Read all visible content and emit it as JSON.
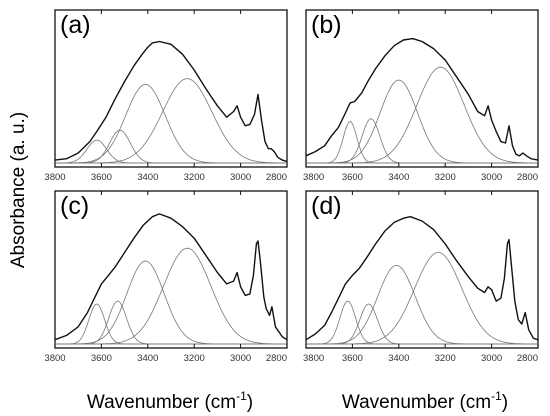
{
  "figure": {
    "ylabel": "Absorbance (a. u.)",
    "xlabel_main": "Wavenumber (cm",
    "xlabel_sup": "-1",
    "xlabel_tail": ")"
  },
  "chart_data": [
    {
      "type": "line",
      "panel": "(a)",
      "title": "(a)",
      "xlabel": "",
      "ylabel": "",
      "xlim": [
        3800,
        2800
      ],
      "x_reversed": true,
      "ylim": [
        0,
        1
      ],
      "x_ticks": [
        3800,
        3600,
        3400,
        3200,
        3000,
        2800
      ],
      "grid": false,
      "components": [
        {
          "center": 3620,
          "height": 0.16,
          "fwhm": 100
        },
        {
          "center": 3520,
          "height": 0.23,
          "fwhm": 105
        },
        {
          "center": 3410,
          "height": 0.55,
          "fwhm": 200
        },
        {
          "center": 3230,
          "height": 0.59,
          "fwhm": 250
        }
      ],
      "series": [
        {
          "role": "measured",
          "x": [
            3800,
            3750,
            3700,
            3650,
            3620,
            3580,
            3540,
            3500,
            3460,
            3420,
            3400,
            3380,
            3350,
            3300,
            3250,
            3200,
            3150,
            3100,
            3060,
            3030,
            3015,
            3000,
            2980,
            2960,
            2940,
            2925,
            2910,
            2895,
            2880,
            2868,
            2855,
            2840,
            2820,
            2800
          ],
          "y": [
            0.02,
            0.03,
            0.07,
            0.15,
            0.22,
            0.32,
            0.45,
            0.57,
            0.68,
            0.77,
            0.81,
            0.84,
            0.85,
            0.83,
            0.76,
            0.65,
            0.52,
            0.4,
            0.32,
            0.36,
            0.4,
            0.32,
            0.26,
            0.27,
            0.34,
            0.48,
            0.3,
            0.15,
            0.1,
            0.1,
            0.08,
            0.04,
            0.02,
            0.01
          ]
        }
      ]
    },
    {
      "type": "line",
      "panel": "(b)",
      "title": "(b)",
      "xlabel": "",
      "ylabel": "",
      "xlim": [
        3800,
        2800
      ],
      "x_reversed": true,
      "ylim": [
        0,
        1
      ],
      "x_ticks": [
        3800,
        3600,
        3400,
        3200,
        3000,
        2800
      ],
      "grid": false,
      "components": [
        {
          "center": 3610,
          "height": 0.29,
          "fwhm": 70
        },
        {
          "center": 3520,
          "height": 0.31,
          "fwhm": 90
        },
        {
          "center": 3400,
          "height": 0.58,
          "fwhm": 190
        },
        {
          "center": 3220,
          "height": 0.67,
          "fwhm": 240
        }
      ],
      "series": [
        {
          "role": "measured",
          "x": [
            3800,
            3760,
            3720,
            3690,
            3660,
            3630,
            3610,
            3590,
            3560,
            3530,
            3500,
            3460,
            3420,
            3380,
            3340,
            3300,
            3250,
            3200,
            3150,
            3100,
            3060,
            3030,
            3015,
            3000,
            2980,
            2960,
            2940,
            2925,
            2910,
            2895,
            2880,
            2865,
            2850,
            2830,
            2800
          ],
          "y": [
            0.05,
            0.08,
            0.12,
            0.19,
            0.25,
            0.35,
            0.42,
            0.43,
            0.49,
            0.58,
            0.66,
            0.75,
            0.82,
            0.86,
            0.87,
            0.85,
            0.8,
            0.72,
            0.6,
            0.48,
            0.36,
            0.33,
            0.4,
            0.3,
            0.22,
            0.15,
            0.14,
            0.26,
            0.12,
            0.06,
            0.05,
            0.07,
            0.05,
            0.03,
            0.02
          ]
        }
      ]
    },
    {
      "type": "line",
      "panel": "(c)",
      "title": "(c)",
      "xlabel": "",
      "ylabel": "",
      "xlim": [
        3800,
        2800
      ],
      "x_reversed": true,
      "ylim": [
        0,
        1
      ],
      "x_ticks": [
        3800,
        3600,
        3400,
        3200,
        3000,
        2800
      ],
      "grid": false,
      "components": [
        {
          "center": 3620,
          "height": 0.28,
          "fwhm": 80
        },
        {
          "center": 3530,
          "height": 0.3,
          "fwhm": 90
        },
        {
          "center": 3410,
          "height": 0.58,
          "fwhm": 190
        },
        {
          "center": 3230,
          "height": 0.67,
          "fwhm": 240
        }
      ],
      "series": [
        {
          "role": "measured",
          "x": [
            3800,
            3750,
            3700,
            3660,
            3630,
            3600,
            3570,
            3540,
            3500,
            3460,
            3420,
            3380,
            3350,
            3300,
            3250,
            3200,
            3150,
            3100,
            3060,
            3030,
            3015,
            3000,
            2980,
            2960,
            2945,
            2932,
            2925,
            2915,
            2900,
            2890,
            2875,
            2865,
            2850,
            2820,
            2800
          ],
          "y": [
            0.03,
            0.06,
            0.12,
            0.22,
            0.32,
            0.42,
            0.48,
            0.54,
            0.64,
            0.74,
            0.83,
            0.89,
            0.91,
            0.88,
            0.82,
            0.74,
            0.62,
            0.5,
            0.42,
            0.44,
            0.5,
            0.4,
            0.34,
            0.35,
            0.48,
            0.7,
            0.72,
            0.58,
            0.33,
            0.25,
            0.2,
            0.26,
            0.12,
            0.05,
            0.03
          ]
        }
      ]
    },
    {
      "type": "line",
      "panel": "(d)",
      "title": "(d)",
      "xlabel": "",
      "ylabel": "",
      "xlim": [
        3800,
        2800
      ],
      "x_reversed": true,
      "ylim": [
        0,
        1
      ],
      "x_ticks": [
        3800,
        3600,
        3400,
        3200,
        3000,
        2800
      ],
      "grid": false,
      "components": [
        {
          "center": 3620,
          "height": 0.3,
          "fwhm": 80
        },
        {
          "center": 3530,
          "height": 0.28,
          "fwhm": 90
        },
        {
          "center": 3410,
          "height": 0.55,
          "fwhm": 190
        },
        {
          "center": 3230,
          "height": 0.64,
          "fwhm": 240
        }
      ],
      "series": [
        {
          "role": "measured",
          "x": [
            3800,
            3760,
            3720,
            3690,
            3660,
            3630,
            3600,
            3570,
            3540,
            3500,
            3460,
            3420,
            3380,
            3350,
            3300,
            3250,
            3200,
            3150,
            3100,
            3060,
            3030,
            3015,
            3000,
            2980,
            2960,
            2945,
            2932,
            2925,
            2915,
            2900,
            2885,
            2870,
            2855,
            2840,
            2820,
            2800
          ],
          "y": [
            0.03,
            0.07,
            0.13,
            0.22,
            0.32,
            0.42,
            0.48,
            0.53,
            0.6,
            0.7,
            0.79,
            0.85,
            0.88,
            0.89,
            0.86,
            0.8,
            0.7,
            0.58,
            0.47,
            0.39,
            0.36,
            0.4,
            0.38,
            0.3,
            0.32,
            0.46,
            0.7,
            0.73,
            0.56,
            0.3,
            0.17,
            0.14,
            0.22,
            0.1,
            0.04,
            0.03
          ]
        }
      ]
    }
  ]
}
